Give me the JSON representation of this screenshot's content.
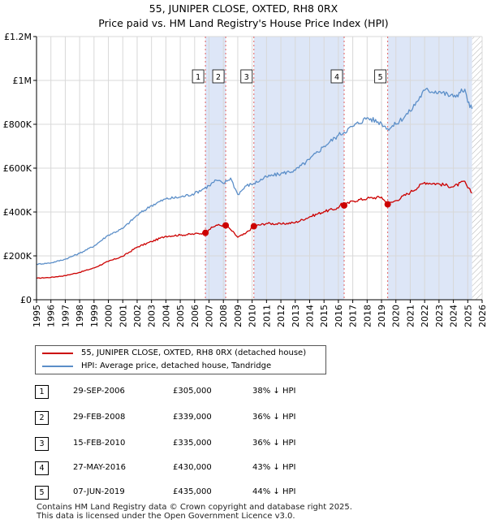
{
  "title_line1": "55, JUNIPER CLOSE, OXTED, RH8 0RX",
  "title_line2": "Price paid vs. HM Land Registry's House Price Index (HPI)",
  "chart_data": {
    "type": "line",
    "xlim": [
      1995,
      2026
    ],
    "ylim": [
      0,
      1200000
    ],
    "yticks": [
      0,
      200000,
      400000,
      600000,
      800000,
      1000000,
      1200000
    ],
    "ytick_labels": [
      "£0",
      "£200K",
      "£400K",
      "£600K",
      "£800K",
      "£1M",
      "£1.2M"
    ],
    "xticks": [
      1995,
      1996,
      1997,
      1998,
      1999,
      2000,
      2001,
      2002,
      2003,
      2004,
      2005,
      2006,
      2007,
      2008,
      2009,
      2010,
      2011,
      2012,
      2013,
      2014,
      2015,
      2016,
      2017,
      2018,
      2019,
      2020,
      2021,
      2022,
      2023,
      2024,
      2025,
      2026
    ],
    "shaded_ranges": [
      [
        2006.75,
        2008.16
      ],
      [
        2010.12,
        2016.4
      ],
      [
        2019.43,
        2025.3
      ]
    ],
    "hatched_range": [
      2025.3,
      2026
    ],
    "series": [
      {
        "name": "55, JUNIPER CLOSE, OXTED, RH8 0RX (detached house)",
        "color": "#cc0000",
        "points": [
          [
            1995,
            98000
          ],
          [
            1996,
            102000
          ],
          [
            1997,
            110000
          ],
          [
            1998,
            125000
          ],
          [
            1999,
            145000
          ],
          [
            2000,
            175000
          ],
          [
            2001,
            198000
          ],
          [
            2002,
            240000
          ],
          [
            2003,
            265000
          ],
          [
            2004,
            290000
          ],
          [
            2005,
            295000
          ],
          [
            2006,
            300000
          ],
          [
            2006.75,
            305000
          ],
          [
            2007,
            320000
          ],
          [
            2007.5,
            340000
          ],
          [
            2008.16,
            339000
          ],
          [
            2008.5,
            320000
          ],
          [
            2009,
            285000
          ],
          [
            2009.5,
            300000
          ],
          [
            2010.12,
            335000
          ],
          [
            2011,
            348000
          ],
          [
            2012,
            345000
          ],
          [
            2013,
            352000
          ],
          [
            2014,
            378000
          ],
          [
            2015,
            402000
          ],
          [
            2016,
            418000
          ],
          [
            2016.2,
            440000
          ],
          [
            2016.4,
            430000
          ],
          [
            2017,
            450000
          ],
          [
            2018,
            462000
          ],
          [
            2019,
            468000
          ],
          [
            2019.43,
            435000
          ],
          [
            2020,
            452000
          ],
          [
            2021,
            490000
          ],
          [
            2022,
            535000
          ],
          [
            2023,
            528000
          ],
          [
            2024,
            515000
          ],
          [
            2024.8,
            540000
          ],
          [
            2025.0,
            510000
          ],
          [
            2025.3,
            487000
          ]
        ]
      },
      {
        "name": "HPI: Average price, detached house, Tandridge",
        "color": "#5b8ec8",
        "points": [
          [
            1995,
            162000
          ],
          [
            1996,
            168000
          ],
          [
            1997,
            185000
          ],
          [
            1998,
            212000
          ],
          [
            1999,
            245000
          ],
          [
            2000,
            295000
          ],
          [
            2001,
            325000
          ],
          [
            2002,
            385000
          ],
          [
            2003,
            430000
          ],
          [
            2004,
            460000
          ],
          [
            2005,
            468000
          ],
          [
            2006,
            485000
          ],
          [
            2007,
            520000
          ],
          [
            2007.5,
            545000
          ],
          [
            2008,
            530000
          ],
          [
            2008.5,
            555000
          ],
          [
            2009,
            480000
          ],
          [
            2009.6,
            520000
          ],
          [
            2010.12,
            530000
          ],
          [
            2011,
            560000
          ],
          [
            2012,
            575000
          ],
          [
            2013,
            590000
          ],
          [
            2014,
            640000
          ],
          [
            2015,
            700000
          ],
          [
            2016,
            750000
          ],
          [
            2017,
            790000
          ],
          [
            2018,
            830000
          ],
          [
            2019,
            805000
          ],
          [
            2019.43,
            780000
          ],
          [
            2020,
            800000
          ],
          [
            2021,
            860000
          ],
          [
            2022,
            955000
          ],
          [
            2023,
            950000
          ],
          [
            2024,
            925000
          ],
          [
            2024.8,
            960000
          ],
          [
            2025.0,
            900000
          ],
          [
            2025.3,
            870000
          ]
        ]
      }
    ],
    "sale_markers": [
      {
        "label": "1",
        "year": 2006.75,
        "price": 305000
      },
      {
        "label": "2",
        "year": 2008.16,
        "price": 339000
      },
      {
        "label": "3",
        "year": 2010.12,
        "price": 335000
      },
      {
        "label": "4",
        "year": 2016.4,
        "price": 430000
      },
      {
        "label": "5",
        "year": 2019.43,
        "price": 435000
      }
    ]
  },
  "legend": {
    "property_label": "55, JUNIPER CLOSE, OXTED, RH8 0RX (detached house)",
    "hpi_label": "HPI: Average price, detached house, Tandridge"
  },
  "sales": [
    {
      "num": "1",
      "date": "29-SEP-2006",
      "price": "£305,000",
      "hpi": "38% ↓ HPI"
    },
    {
      "num": "2",
      "date": "29-FEB-2008",
      "price": "£339,000",
      "hpi": "36% ↓ HPI"
    },
    {
      "num": "3",
      "date": "15-FEB-2010",
      "price": "£335,000",
      "hpi": "36% ↓ HPI"
    },
    {
      "num": "4",
      "date": "27-MAY-2016",
      "price": "£430,000",
      "hpi": "43% ↓ HPI"
    },
    {
      "num": "5",
      "date": "07-JUN-2019",
      "price": "£435,000",
      "hpi": "44% ↓ HPI"
    }
  ],
  "footer": {
    "line1": "Contains HM Land Registry data © Crown copyright and database right 2025.",
    "line2": "This data is licensed under the Open Government Licence v3.0."
  },
  "colors": {
    "property": "#cc0000",
    "hpi": "#5b8ec8",
    "shade": "#dde6f7",
    "vline": "#e06060"
  }
}
